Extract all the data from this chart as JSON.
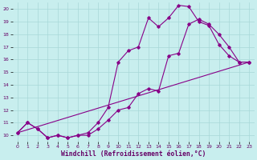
{
  "xlabel": "Windchill (Refroidissement éolien,°C)",
  "xlim": [
    -0.5,
    23.5
  ],
  "ylim": [
    9.5,
    20.5
  ],
  "xticks": [
    0,
    1,
    2,
    3,
    4,
    5,
    6,
    7,
    8,
    9,
    10,
    11,
    12,
    13,
    14,
    15,
    16,
    17,
    18,
    19,
    20,
    21,
    22,
    23
  ],
  "yticks": [
    10,
    11,
    12,
    13,
    14,
    15,
    16,
    17,
    18,
    19,
    20
  ],
  "bg_color": "#c8eeee",
  "grid_color": "#a8d8d8",
  "line_color": "#880088",
  "line1_x": [
    0,
    1,
    2,
    3,
    4,
    5,
    6,
    7,
    8,
    9,
    10,
    11,
    12,
    13,
    14,
    15,
    16,
    17,
    18,
    19,
    20,
    21,
    22,
    23
  ],
  "line1_y": [
    10.2,
    11.0,
    10.5,
    9.8,
    10.0,
    9.8,
    10.0,
    10.0,
    10.5,
    11.2,
    12.0,
    12.2,
    13.3,
    13.7,
    13.5,
    16.3,
    16.5,
    18.8,
    19.2,
    18.8,
    18.0,
    17.0,
    15.8,
    15.8
  ],
  "line2_x": [
    0,
    1,
    2,
    3,
    4,
    5,
    6,
    7,
    8,
    9,
    10,
    11,
    12,
    13,
    14,
    15,
    16,
    17,
    18,
    19,
    20,
    21,
    22,
    23
  ],
  "line2_y": [
    10.2,
    11.0,
    10.5,
    9.8,
    10.0,
    9.8,
    10.0,
    10.2,
    11.0,
    12.2,
    15.8,
    16.7,
    17.0,
    19.3,
    18.6,
    19.3,
    20.3,
    20.2,
    19.0,
    18.7,
    17.2,
    16.3,
    15.8,
    15.8
  ],
  "line3_x": [
    0,
    23
  ],
  "line3_y": [
    10.2,
    15.8
  ],
  "marker": "D",
  "markersize": 1.8,
  "linewidth": 0.8,
  "font_color": "#660066",
  "tick_fontsize": 4.5,
  "xlabel_fontsize": 5.8
}
